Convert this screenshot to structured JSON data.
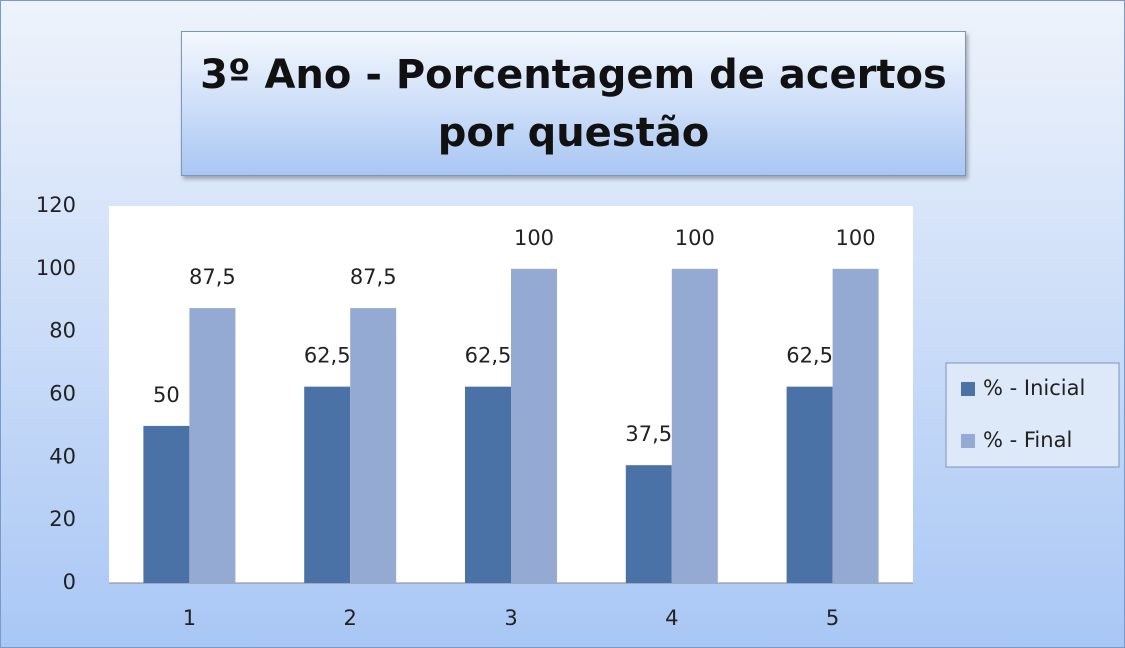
{
  "chart_data": {
    "type": "bar",
    "title": "3º Ano - Porcentagem de acertos por questão",
    "categories": [
      "1",
      "2",
      "3",
      "4",
      "5"
    ],
    "series": [
      {
        "name": "% - Inicial",
        "color": "#4a72a6",
        "values": [
          50,
          62.5,
          62.5,
          37.5,
          62.5
        ],
        "value_labels": [
          "50",
          "62,5",
          "62,5",
          "37,5",
          "62,5"
        ]
      },
      {
        "name": "% - Final",
        "color": "#95aad2",
        "values": [
          87.5,
          87.5,
          100,
          100,
          100
        ],
        "value_labels": [
          "87,5",
          "87,5",
          "100",
          "100",
          "100"
        ]
      }
    ],
    "ylim": [
      0,
      120
    ],
    "yticks": [
      0,
      20,
      40,
      60,
      80,
      100,
      120
    ],
    "grid": false,
    "legend": "right"
  }
}
